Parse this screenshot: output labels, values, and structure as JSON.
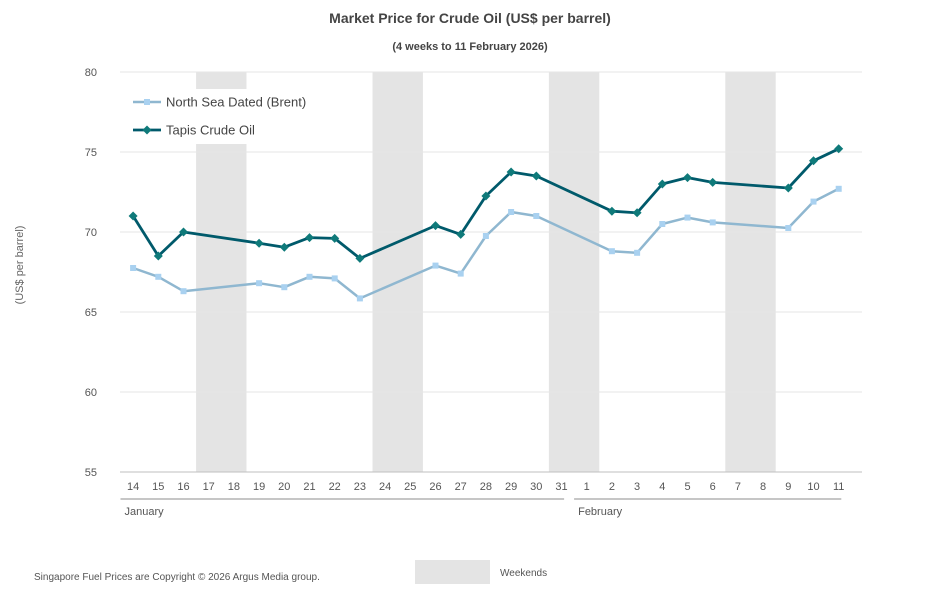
{
  "chart_data": {
    "type": "line",
    "title": "Market Price for Crude Oil (US$ per barrel)",
    "subtitle": "(4 weeks to 11 February 2026)",
    "ylabel": "(US$ per barrel)",
    "ylim": [
      55,
      80
    ],
    "y_ticks": [
      "55",
      "60",
      "65",
      "70",
      "75",
      "80"
    ],
    "grid": true,
    "legend_position": "top-left",
    "categories": [
      "14",
      "15",
      "16",
      "17",
      "18",
      "19",
      "20",
      "21",
      "22",
      "23",
      "24",
      "25",
      "26",
      "27",
      "28",
      "29",
      "30",
      "31",
      "1",
      "2",
      "3",
      "4",
      "5",
      "6",
      "7",
      "8",
      "9",
      "10",
      "11"
    ],
    "months": [
      {
        "label": "January",
        "start": 0,
        "end": 17
      },
      {
        "label": "February",
        "start": 18,
        "end": 28
      }
    ],
    "weekends": [
      {
        "start": 3,
        "end": 4
      },
      {
        "start": 10,
        "end": 11
      },
      {
        "start": 17,
        "end": 18
      },
      {
        "start": 24,
        "end": 25
      }
    ],
    "series": [
      {
        "name": "North Sea Dated (Brent)",
        "color": "#8fb7d0",
        "marker_color": "#a9d1f0",
        "marker": "square",
        "values": [
          67.75,
          67.2,
          66.3,
          null,
          null,
          66.8,
          66.55,
          67.2,
          67.1,
          65.85,
          null,
          null,
          67.9,
          67.4,
          69.75,
          71.25,
          71.0,
          null,
          null,
          68.8,
          68.7,
          70.5,
          70.9,
          70.6,
          null,
          null,
          70.25,
          71.9,
          72.7
        ]
      },
      {
        "name": "Tapis Crude Oil",
        "color": "#005a6b",
        "marker_color": "#0f7a7a",
        "marker": "diamond",
        "values": [
          71.0,
          68.5,
          70.0,
          null,
          null,
          69.3,
          69.05,
          69.65,
          69.6,
          68.35,
          null,
          null,
          70.4,
          69.85,
          72.25,
          73.75,
          73.5,
          null,
          null,
          71.3,
          71.2,
          73.0,
          73.4,
          73.1,
          null,
          null,
          72.75,
          74.45,
          75.2
        ]
      }
    ]
  },
  "footer": {
    "copyright": "Singapore Fuel Prices are Copyright © 2026 Argus Media group.",
    "weekends_label": "Weekends"
  }
}
